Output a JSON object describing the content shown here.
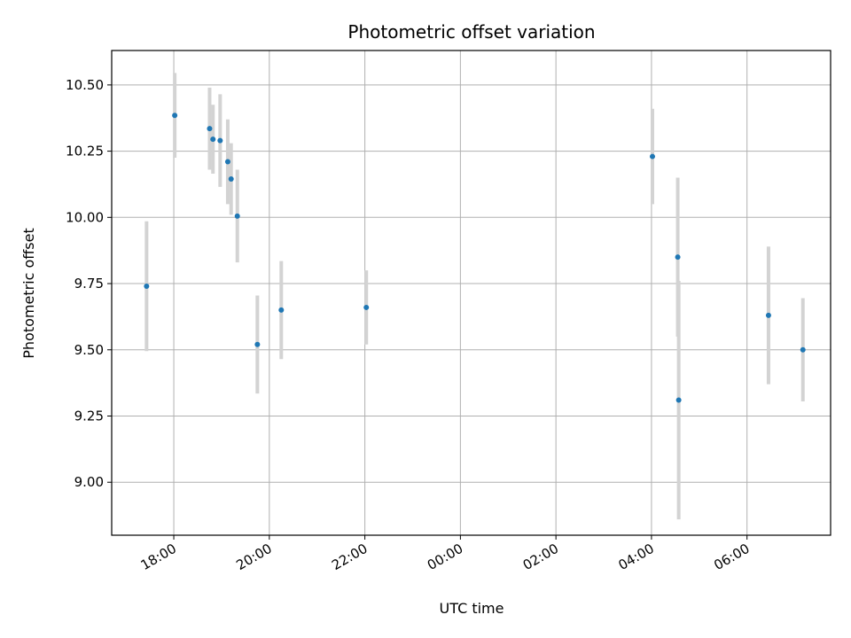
{
  "chart_data": {
    "type": "scatter",
    "title": "Photometric offset variation",
    "xlabel": "UTC time",
    "ylabel": "Photometric offset",
    "x_unit": "hours",
    "xlim": [
      16.7,
      31.75
    ],
    "ylim": [
      8.8,
      10.63
    ],
    "x_ticks": [
      {
        "value": 18,
        "label": "18:00"
      },
      {
        "value": 20,
        "label": "20:00"
      },
      {
        "value": 22,
        "label": "22:00"
      },
      {
        "value": 24,
        "label": "00:00"
      },
      {
        "value": 26,
        "label": "02:00"
      },
      {
        "value": 28,
        "label": "04:00"
      },
      {
        "value": 30,
        "label": "06:00"
      }
    ],
    "y_ticks": [
      {
        "value": 9.0,
        "label": "9.00"
      },
      {
        "value": 9.25,
        "label": "9.25"
      },
      {
        "value": 9.5,
        "label": "9.50"
      },
      {
        "value": 9.75,
        "label": "9.75"
      },
      {
        "value": 10.0,
        "label": "10.00"
      },
      {
        "value": 10.25,
        "label": "10.25"
      },
      {
        "value": 10.5,
        "label": "10.50"
      }
    ],
    "grid": true,
    "colors": {
      "marker": "#1f77b4",
      "errorbar": "#d3d3d3",
      "grid": "#b0b0b0"
    },
    "points": [
      {
        "x": 17.43,
        "y": 9.74,
        "err": 0.245
      },
      {
        "x": 18.02,
        "y": 10.385,
        "err": 0.16
      },
      {
        "x": 18.75,
        "y": 10.335,
        "err": 0.155
      },
      {
        "x": 18.82,
        "y": 10.295,
        "err": 0.13
      },
      {
        "x": 18.97,
        "y": 10.29,
        "err": 0.175
      },
      {
        "x": 19.13,
        "y": 10.21,
        "err": 0.16
      },
      {
        "x": 19.2,
        "y": 10.145,
        "err": 0.135
      },
      {
        "x": 19.33,
        "y": 10.005,
        "err": 0.175
      },
      {
        "x": 19.75,
        "y": 9.52,
        "err": 0.185
      },
      {
        "x": 20.25,
        "y": 9.65,
        "err": 0.185
      },
      {
        "x": 22.03,
        "y": 9.66,
        "err": 0.14
      },
      {
        "x": 28.02,
        "y": 10.23,
        "err": 0.18
      },
      {
        "x": 28.55,
        "y": 9.85,
        "err": 0.3
      },
      {
        "x": 28.57,
        "y": 9.31,
        "err": 0.45
      },
      {
        "x": 30.45,
        "y": 9.63,
        "err": 0.26
      },
      {
        "x": 31.17,
        "y": 9.5,
        "err": 0.195
      }
    ]
  }
}
